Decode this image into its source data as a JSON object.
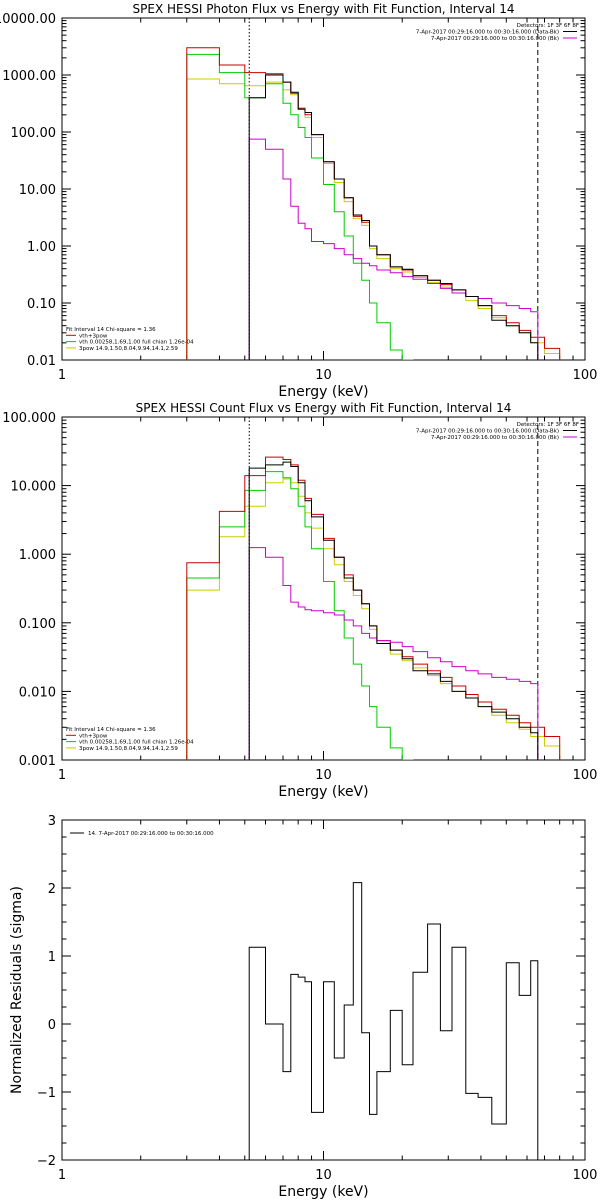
{
  "chart_data": [
    {
      "type": "line",
      "title": "SPEX HESSI Photon Flux vs Energy with Fit Function, Interval 14",
      "xlabel": "Energy (keV)",
      "ylabel": "",
      "xscale": "log",
      "yscale": "log",
      "xlim": [
        1,
        100
      ],
      "ylim": [
        0.01,
        10000
      ],
      "xticks": [
        1,
        10,
        100
      ],
      "xtick_labels": [
        "1",
        "10",
        "100"
      ],
      "yticks": [
        0.01,
        0.1,
        1,
        10,
        100,
        1000,
        10000
      ],
      "ytick_labels": [
        "0.01",
        "0.10",
        "1.00",
        "10.00",
        "100.00",
        "1000.00",
        "10000.00"
      ],
      "fit_info": [
        {
          "text": "Fit Interval 14   Chi-square = 1.36",
          "color": "#000000"
        },
        {
          "text": "vth+3pow",
          "color": "#cc0000"
        },
        {
          "text": "vth 0.00258,1.69,1.00  full chian 1.26e-04",
          "color": "#00cc00"
        },
        {
          "text": "3pow 14.9,1.50,8.04,9.94,14.1,2.59",
          "color": "#cccc00"
        }
      ],
      "legend": {
        "position": "top-right",
        "entries": [
          {
            "text": "Detectors: 1F 3F 6F 8F",
            "color": "#000000",
            "line": false
          },
          {
            "text": "7-Apr-2017 00:29:16.000 to 00:30:16.000 (Data-Bk)",
            "color": "#000000",
            "line": true
          },
          {
            "text": "7-Apr-2017 00:29:16.000 to 00:30:16.000 (Bk)",
            "color": "#cc00cc",
            "line": true
          }
        ]
      },
      "vlines": [
        {
          "x": 5.2,
          "style": "dotted",
          "color": "#000000"
        },
        {
          "x": 66,
          "style": "dashed",
          "color": "#000000"
        }
      ],
      "series": [
        {
          "name": "Data-Bk",
          "color": "#000000",
          "edges": [
            5.2,
            6,
            7,
            7.5,
            8,
            8.5,
            9,
            10,
            11,
            12,
            13,
            14,
            15,
            16,
            18,
            20,
            22,
            25,
            28,
            31,
            35,
            39,
            44,
            50,
            56,
            62,
            66
          ],
          "values": [
            400,
            1000,
            750,
            500,
            250,
            220,
            90,
            30,
            15,
            7,
            3.5,
            2.8,
            1,
            0.7,
            0.43,
            0.39,
            0.3,
            0.25,
            0.22,
            0.17,
            0.13,
            0.09,
            0.05,
            0.04,
            0.03,
            0.02
          ]
        },
        {
          "name": "Bk",
          "color": "#cc00cc",
          "edges": [
            5.2,
            6,
            7,
            7.5,
            8,
            8.5,
            9,
            10,
            11,
            12,
            13,
            14,
            15,
            16,
            18,
            20,
            22,
            25,
            28,
            31,
            35,
            39,
            44,
            50,
            56,
            62,
            66
          ],
          "values": [
            75,
            50,
            15,
            5,
            2.5,
            2,
            1.2,
            1.1,
            0.9,
            0.7,
            0.6,
            0.5,
            0.45,
            0.38,
            0.34,
            0.29,
            0.26,
            0.22,
            0.18,
            0.15,
            0.13,
            0.12,
            0.1,
            0.09,
            0.08,
            0.07
          ]
        },
        {
          "name": "vth+3pow",
          "color": "#cc0000",
          "edges": [
            3,
            4,
            5,
            6,
            7,
            7.5,
            8,
            8.5,
            9,
            10,
            11,
            12,
            13,
            14,
            15,
            16,
            18,
            20,
            22,
            25,
            28,
            31,
            35,
            39,
            44,
            50,
            56,
            62,
            70,
            80
          ],
          "values": [
            3000,
            1500,
            1100,
            1050,
            750,
            480,
            260,
            200,
            90,
            30,
            15,
            7,
            3.3,
            2.6,
            1,
            0.7,
            0.43,
            0.38,
            0.3,
            0.25,
            0.21,
            0.17,
            0.13,
            0.09,
            0.06,
            0.045,
            0.033,
            0.025,
            0.016
          ]
        },
        {
          "name": "vth",
          "color": "#00cc00",
          "edges": [
            3,
            4,
            5,
            6,
            7,
            7.5,
            8,
            8.5,
            9,
            10,
            11,
            12,
            13,
            14,
            15,
            16,
            18,
            20,
            22
          ],
          "values": [
            2300,
            1100,
            400,
            700,
            320,
            200,
            120,
            80,
            35,
            12,
            4,
            1.5,
            0.5,
            0.25,
            0.1,
            0.045,
            0.015,
            0.01
          ]
        },
        {
          "name": "3pow",
          "color": "#cccc00",
          "edges": [
            3,
            4,
            5,
            6,
            7,
            7.5,
            8,
            8.5,
            9,
            10,
            11,
            12,
            13,
            14,
            15,
            16,
            18,
            20,
            22,
            25,
            28,
            31,
            35,
            39,
            44,
            50,
            56,
            62,
            70,
            80
          ],
          "values": [
            850,
            700,
            650,
            750,
            550,
            450,
            260,
            180,
            80,
            28,
            13,
            6,
            3,
            2.3,
            0.9,
            0.6,
            0.4,
            0.35,
            0.28,
            0.23,
            0.19,
            0.15,
            0.11,
            0.08,
            0.055,
            0.04,
            0.03,
            0.02,
            0.013
          ]
        }
      ]
    },
    {
      "type": "line",
      "title": "SPEX HESSI Count Flux vs Energy with Fit Function, Interval 14",
      "xlabel": "Energy (keV)",
      "ylabel": "",
      "xscale": "log",
      "yscale": "log",
      "xlim": [
        1,
        100
      ],
      "ylim": [
        0.001,
        100
      ],
      "xticks": [
        1,
        10,
        100
      ],
      "xtick_labels": [
        "1",
        "10",
        "100"
      ],
      "yticks": [
        0.001,
        0.01,
        0.1,
        1,
        10,
        100
      ],
      "ytick_labels": [
        "0.001",
        "0.010",
        "0.100",
        "1.000",
        "10.000",
        "100.000"
      ],
      "fit_info": [
        {
          "text": "Fit Interval 14   Chi-square = 1.36",
          "color": "#000000"
        },
        {
          "text": "vth+3pow",
          "color": "#cc0000"
        },
        {
          "text": "vth 0.00258,1.69,1.00  full chian 1.26e-04",
          "color": "#00cc00"
        },
        {
          "text": "3pow 14.9,1.50,8.04,9.94,14.1,2.59",
          "color": "#cccc00"
        }
      ],
      "legend": {
        "position": "top-right",
        "entries": [
          {
            "text": "Detectors: 1F 3F 6F 8F",
            "color": "#000000",
            "line": false
          },
          {
            "text": "7-Apr-2017 00:29:16.000 to 00:30:16.000 (Data-Bk)",
            "color": "#000000",
            "line": true
          },
          {
            "text": "7-Apr-2017 00:29:16.000 to 00:30:16.000 (Bk)",
            "color": "#cc00cc",
            "line": true
          }
        ]
      },
      "vlines": [
        {
          "x": 5.2,
          "style": "dotted",
          "color": "#000000"
        },
        {
          "x": 66,
          "style": "dashed",
          "color": "#000000"
        }
      ],
      "series": [
        {
          "name": "Data-Bk",
          "color": "#000000",
          "edges": [
            5.2,
            6,
            7,
            7.5,
            8,
            8.5,
            9,
            10,
            11,
            12,
            13,
            14,
            15,
            16,
            18,
            20,
            22,
            25,
            28,
            31,
            35,
            39,
            44,
            50,
            56,
            62,
            66
          ],
          "values": [
            18,
            20,
            22,
            19,
            11,
            6,
            3.5,
            1.6,
            0.9,
            0.45,
            0.3,
            0.19,
            0.09,
            0.05,
            0.04,
            0.03,
            0.02,
            0.018,
            0.014,
            0.01,
            0.008,
            0.006,
            0.005,
            0.004,
            0.003,
            0.0025
          ]
        },
        {
          "name": "Bk",
          "color": "#cc00cc",
          "edges": [
            5.2,
            6,
            7,
            7.5,
            8,
            8.5,
            9,
            10,
            11,
            12,
            13,
            14,
            15,
            16,
            18,
            20,
            22,
            25,
            28,
            31,
            35,
            39,
            44,
            50,
            56,
            62,
            66
          ],
          "values": [
            1.25,
            0.9,
            0.35,
            0.2,
            0.17,
            0.155,
            0.15,
            0.14,
            0.13,
            0.11,
            0.09,
            0.07,
            0.06,
            0.055,
            0.052,
            0.045,
            0.038,
            0.031,
            0.027,
            0.023,
            0.02,
            0.018,
            0.016,
            0.015,
            0.014,
            0.013
          ]
        },
        {
          "name": "vth+3pow",
          "color": "#cc0000",
          "edges": [
            3,
            4,
            5,
            6,
            7,
            7.5,
            8,
            8.5,
            9,
            10,
            11,
            12,
            13,
            14,
            15,
            16,
            18,
            20,
            22,
            25,
            28,
            31,
            35,
            39,
            44,
            50,
            56,
            62,
            70,
            80
          ],
          "values": [
            0.75,
            4.2,
            14,
            26,
            24,
            20,
            12,
            6.5,
            3.8,
            1.7,
            0.9,
            0.5,
            0.3,
            0.19,
            0.09,
            0.055,
            0.04,
            0.032,
            0.025,
            0.02,
            0.016,
            0.012,
            0.009,
            0.007,
            0.0055,
            0.0045,
            0.0035,
            0.003,
            0.0022
          ]
        },
        {
          "name": "vth",
          "color": "#00cc00",
          "edges": [
            3,
            4,
            5,
            6,
            7,
            7.5,
            8,
            8.5,
            9,
            10,
            11,
            12,
            13,
            14,
            15,
            16,
            18,
            20,
            22
          ],
          "values": [
            0.45,
            2.5,
            8.5,
            16,
            13,
            9,
            5,
            2.5,
            1.2,
            0.4,
            0.15,
            0.06,
            0.025,
            0.012,
            0.006,
            0.003,
            0.0015,
            0.001
          ]
        },
        {
          "name": "3pow",
          "color": "#cccc00",
          "edges": [
            3,
            4,
            5,
            6,
            7,
            7.5,
            8,
            8.5,
            9,
            10,
            11,
            12,
            13,
            14,
            15,
            16,
            18,
            20,
            22,
            25,
            28,
            31,
            35,
            39,
            44,
            50,
            56,
            62,
            70,
            80
          ],
          "values": [
            0.3,
            1.8,
            5,
            11,
            12.5,
            11,
            7,
            4,
            2.4,
            1.2,
            0.7,
            0.4,
            0.25,
            0.16,
            0.08,
            0.05,
            0.035,
            0.028,
            0.022,
            0.017,
            0.013,
            0.01,
            0.008,
            0.006,
            0.0045,
            0.0035,
            0.0028,
            0.0022,
            0.0016
          ]
        }
      ]
    },
    {
      "type": "line",
      "title": "",
      "xlabel": "Energy (keV)",
      "ylabel": "Normalized Residuals (sigma)",
      "xscale": "log",
      "yscale": "linear",
      "xlim": [
        1,
        100
      ],
      "ylim": [
        -2,
        3
      ],
      "xticks": [
        1,
        10,
        100
      ],
      "xtick_labels": [
        "1",
        "10",
        "100"
      ],
      "yticks": [
        -2,
        -1,
        0,
        1,
        2,
        3
      ],
      "ytick_labels": [
        "−2",
        "−1",
        "0",
        "1",
        "2",
        "3"
      ],
      "legend": {
        "position": "top-left",
        "entries": [
          {
            "text": "14.  7-Apr-2017 00:29:16.000 to 00:30:16.000",
            "color": "#000000",
            "line": true
          }
        ]
      },
      "series": [
        {
          "name": "",
          "color": "#000000",
          "edges": [
            5.2,
            6,
            7,
            7.5,
            8,
            8.5,
            9,
            10,
            11,
            12,
            13,
            14,
            15,
            16,
            18,
            20,
            22,
            25,
            28,
            31,
            35,
            39,
            44,
            50,
            56,
            62,
            66
          ],
          "values": [
            1.13,
            0,
            -0.7,
            0.73,
            0.69,
            0.62,
            -1.3,
            0.62,
            -0.5,
            0.28,
            2.08,
            -0.13,
            -1.33,
            -0.7,
            0.2,
            -0.6,
            0.76,
            1.47,
            -0.1,
            1.13,
            -1.02,
            -1.08,
            -1.47,
            0.9,
            0.42,
            0.93
          ]
        }
      ]
    }
  ]
}
